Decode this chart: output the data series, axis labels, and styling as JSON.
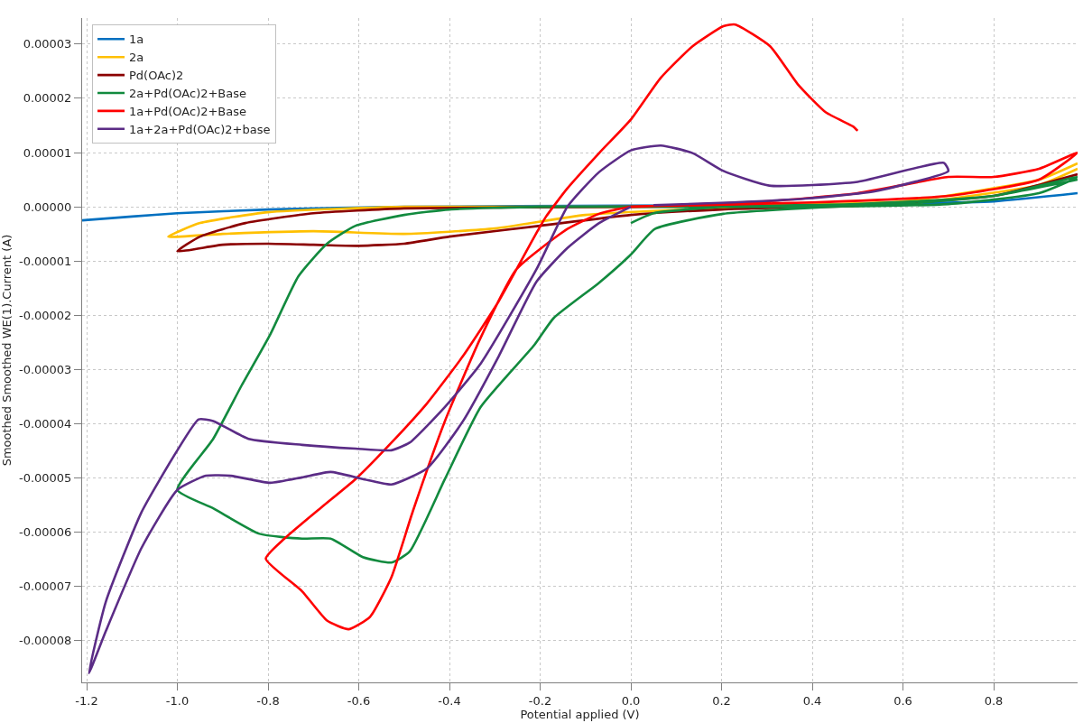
{
  "chart_data": {
    "type": "line",
    "xlabel": "Potential applied (V)",
    "ylabel": "Smoothed Smoothed WE(1).Current (A)",
    "xlim": [
      -1.21,
      0.985
    ],
    "ylim": [
      -8.77e-05,
      3.48e-05
    ],
    "xticks": [
      {
        "value": -1.2,
        "label": "-1.2"
      },
      {
        "value": -1.0,
        "label": "-1.0"
      },
      {
        "value": -0.8,
        "label": "-0.8"
      },
      {
        "value": -0.6,
        "label": "-0.6"
      },
      {
        "value": -0.4,
        "label": "-0.4"
      },
      {
        "value": -0.2,
        "label": "-0.2"
      },
      {
        "value": 0,
        "label": "0.0"
      },
      {
        "value": 0.2,
        "label": "0.2"
      },
      {
        "value": 0.4,
        "label": "0.4"
      },
      {
        "value": 0.6,
        "label": "0.6"
      },
      {
        "value": 0.8,
        "label": "0.8"
      }
    ],
    "yticks": [
      {
        "value": 3e-05,
        "label": "0.00003"
      },
      {
        "value": 2e-05,
        "label": "0.00002"
      },
      {
        "value": 1e-05,
        "label": "0.00001"
      },
      {
        "value": 0,
        "label": "0.00000"
      },
      {
        "value": -1e-05,
        "label": "-0.00001"
      },
      {
        "value": -2e-05,
        "label": "-0.00002"
      },
      {
        "value": -3e-05,
        "label": "-0.00003"
      },
      {
        "value": -4e-05,
        "label": "-0.00004"
      },
      {
        "value": -5e-05,
        "label": "-0.00005"
      },
      {
        "value": -6e-05,
        "label": "-0.00006"
      },
      {
        "value": -7e-05,
        "label": "-0.00007"
      },
      {
        "value": -8e-05,
        "label": "-0.00008"
      }
    ],
    "grid": true,
    "legend": "top left",
    "series": [
      {
        "name": "1a",
        "color": "#0070c0",
        "x": [
          -1.21,
          -1.1,
          -1.0,
          -0.8,
          -0.5,
          0,
          0.5,
          0.8,
          0.985
        ],
        "values": [
          -2.5e-06,
          -1.8e-06,
          -1.2e-06,
          -5e-07,
          0,
          2e-07,
          5e-07,
          1e-06,
          2.5e-06
        ]
      },
      {
        "name": "2a",
        "color": "#ffc000",
        "x": [
          0.985,
          0.9,
          0.6,
          0.2,
          -0.1,
          -0.3,
          -0.5,
          -0.7,
          -0.9,
          -1.02,
          -0.95,
          -0.8,
          -0.5,
          0,
          0.6,
          0.9,
          0.985
        ],
        "values": [
          7e-06,
          4e-06,
          5e-07,
          -2e-07,
          -1.5e-06,
          -4e-06,
          -5e-06,
          -4.5e-06,
          -5e-06,
          -5.5e-06,
          -3e-06,
          -1e-06,
          0,
          0,
          1e-06,
          5e-06,
          8e-06
        ]
      },
      {
        "name": "Pd(OAc)2",
        "color": "#8b0000",
        "x": [
          0.985,
          0.8,
          0.5,
          0.2,
          0,
          -0.2,
          -0.4,
          -0.5,
          -0.6,
          -0.7,
          -0.8,
          -0.9,
          -1.0,
          -0.95,
          -0.85,
          -0.7,
          -0.5,
          0,
          0.5
        ],
        "values": [
          6e-06,
          2e-06,
          2e-07,
          -5e-07,
          -1.5e-06,
          -3.5e-06,
          -5.5e-06,
          -6.8e-06,
          -7.2e-06,
          -7e-06,
          -6.8e-06,
          -7e-06,
          -8.2e-06,
          -5.5e-06,
          -3e-06,
          -1.2e-06,
          -3e-07,
          0,
          2e-07
        ]
      },
      {
        "name": "2a+Pd(OAc)2+Base",
        "color": "#128a3e",
        "x": [
          0,
          0.05,
          0.2,
          0.5,
          0.8,
          0.985,
          0.9,
          0.7,
          0.4,
          0.1,
          -0.2,
          -0.4,
          -0.5,
          -0.607,
          -0.67,
          -0.733,
          -0.795,
          -0.858,
          -0.921,
          -1.0,
          -0.921,
          -0.819,
          -0.725,
          -0.662,
          -0.591,
          -0.528,
          -0.488,
          -0.41,
          -0.331,
          -0.213,
          -0.17,
          -0.07,
          0,
          0.053,
          0.204,
          0.4,
          0.6,
          0.8,
          0.985
        ],
        "values": [
          -3e-06,
          -1.2e-06,
          0,
          5e-07,
          2e-06,
          5.5e-06,
          2.5e-06,
          5e-07,
          0,
          0,
          0,
          -5e-07,
          -1.5e-06,
          -3.5e-06,
          -6.8e-06,
          -1.28e-05,
          -2.35e-05,
          -3.29e-05,
          -4.28e-05,
          -5.22e-05,
          -5.56e-05,
          -6.03e-05,
          -6.12e-05,
          -6.12e-05,
          -6.46e-05,
          -6.56e-05,
          -6.36e-05,
          -5.02e-05,
          -3.69e-05,
          -2.55e-05,
          -2.05e-05,
          -1.4e-05,
          -8.8e-06,
          -4.1e-06,
          -1.3e-06,
          -2e-07,
          5e-07,
          2e-06,
          5e-06
        ]
      },
      {
        "name": "1a+Pd(OAc)2+Base",
        "color": "#ff0000",
        "x": [
          0,
          0.3,
          0.5,
          0.7,
          0.8,
          0.9,
          0.985,
          0.9,
          0.7,
          0.4,
          0.1,
          0,
          -0.07,
          -0.14,
          -0.252,
          -0.331,
          -0.41,
          -0.481,
          -0.528,
          -0.575,
          -0.622,
          -0.67,
          -0.725,
          -0.805,
          -0.764,
          -0.685,
          -0.607,
          -0.528,
          -0.449,
          -0.37,
          -0.292,
          -0.208,
          -0.187,
          -0.14,
          -0.07,
          0,
          0.066,
          0.136,
          0.204,
          0.23,
          0.307,
          0.368,
          0.43,
          0.49,
          0.5
        ],
        "values": [
          0,
          1e-06,
          2.5e-06,
          5.5e-06,
          5.5e-06,
          7e-06,
          1e-05,
          5e-06,
          2e-06,
          8e-07,
          2e-07,
          0,
          -1.3e-06,
          -4.1e-06,
          -1.15e-05,
          -2.41e-05,
          -3.95e-05,
          -5.62e-05,
          -6.83e-05,
          -7.56e-05,
          -7.79e-05,
          -7.63e-05,
          -7.09e-05,
          -6.49e-05,
          -6.12e-05,
          -5.56e-05,
          -5.02e-05,
          -4.35e-05,
          -3.62e-05,
          -2.75e-05,
          -1.75e-05,
          -4.8e-06,
          -1.8e-06,
          3.4e-06,
          9.9e-06,
          1.61e-05,
          2.38e-05,
          2.96e-05,
          3.33e-05,
          3.36e-05,
          2.96e-05,
          2.26e-05,
          1.74e-05,
          1.48e-05,
          1.4e-05
        ]
      },
      {
        "name": "1a+2a+Pd(OAc)2+base",
        "color": "#5b2c86",
        "x": [
          0,
          -0.07,
          -0.14,
          -0.208,
          -0.291,
          -0.37,
          -0.449,
          -0.528,
          -0.591,
          -0.662,
          -0.725,
          -0.795,
          -0.882,
          -0.937,
          -1.0,
          -1.079,
          -1.158,
          -1.195,
          -1.158,
          -1.079,
          -1.0,
          -0.953,
          -0.921,
          -0.843,
          -0.725,
          -0.607,
          -0.528,
          -0.488,
          -0.41,
          -0.331,
          -0.208,
          -0.14,
          -0.07,
          0,
          0.066,
          0.136,
          0.204,
          0.305,
          0.5,
          0.69,
          0.7,
          0.54,
          0.385,
          0.226,
          0.05
        ],
        "values": [
          0,
          -3e-06,
          -7.6e-06,
          -1.38e-05,
          -2.75e-05,
          -3.95e-05,
          -4.82e-05,
          -5.12e-05,
          -5.02e-05,
          -4.89e-05,
          -4.99e-05,
          -5.09e-05,
          -4.96e-05,
          -4.96e-05,
          -5.22e-05,
          -6.29e-05,
          -7.83e-05,
          -8.6e-05,
          -7.29e-05,
          -5.63e-05,
          -4.49e-05,
          -3.92e-05,
          -3.95e-05,
          -4.28e-05,
          -4.39e-05,
          -4.46e-05,
          -4.49e-05,
          -4.35e-05,
          -3.69e-05,
          -2.89e-05,
          -1.15e-05,
          0,
          6.4e-06,
          1.04e-05,
          1.13e-05,
          9.9e-06,
          6.6e-06,
          3.9e-06,
          4.6e-06,
          8.1e-06,
          6.6e-06,
          2.9e-06,
          1.5e-06,
          8e-07,
          3e-07
        ]
      }
    ]
  }
}
